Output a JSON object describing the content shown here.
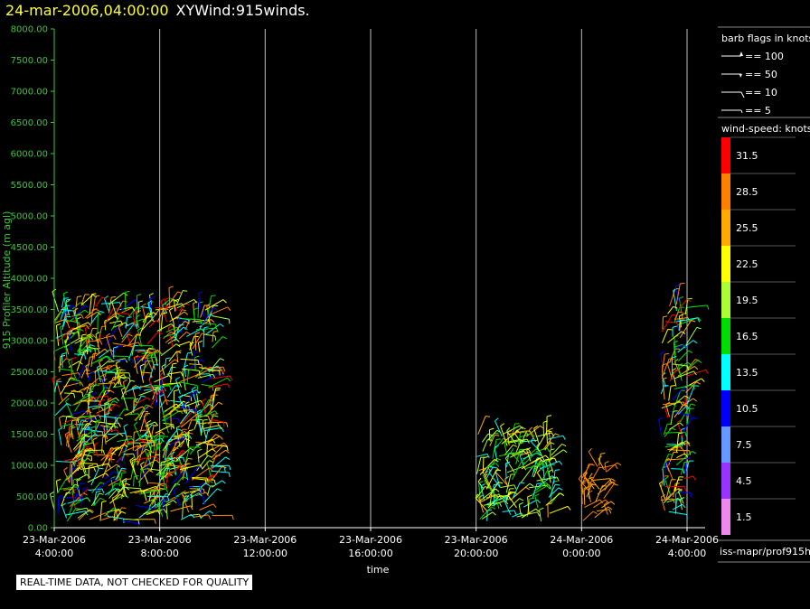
{
  "header": {
    "date_label": "24-mar-2006,04:00:00",
    "plot_label": "XYWind:915winds."
  },
  "footer": {
    "quality_note": "REAL-TIME DATA, NOT CHECKED FOR QUALITY",
    "source": "iss-mapr/prof915h"
  },
  "colors": {
    "background": "#000000",
    "axis": "#33cc33",
    "gridline": "#bbbbbb",
    "text": "#ffffff",
    "date_title": "#ffff33"
  },
  "chart_data": {
    "type": "scatter",
    "title": "XYWind:915winds.",
    "xlabel": "time",
    "ylabel": "915 Profiler Altitude (m agl)",
    "ylim": [
      0,
      8000
    ],
    "y_ticks": [
      "8000.00",
      "7500.00",
      "7000.00",
      "6500.00",
      "6000.00",
      "5500.00",
      "5000.00",
      "4500.00",
      "4000.00",
      "3500.00",
      "3000.00",
      "2500.00",
      "2000.00",
      "1500.00",
      "1000.00",
      "500.00",
      "0.00"
    ],
    "x_range": [
      "2006-03-23T04:00",
      "2006-03-24T04:00"
    ],
    "x_ticks": [
      {
        "time": "2006-03-23T04:00",
        "date": "23-Mar-2006",
        "clock": "4:00:00"
      },
      {
        "time": "2006-03-23T08:00",
        "date": "23-Mar-2006",
        "clock": "8:00:00"
      },
      {
        "time": "2006-03-23T12:00",
        "date": "23-Mar-2006",
        "clock": "12:00:00"
      },
      {
        "time": "2006-03-23T16:00",
        "date": "23-Mar-2006",
        "clock": "16:00:00"
      },
      {
        "time": "2006-03-23T20:00",
        "date": "23-Mar-2006",
        "clock": "20:00:00"
      },
      {
        "time": "2006-03-24T00:00",
        "date": "24-Mar-2006",
        "clock": "0:00:00"
      },
      {
        "time": "2006-03-24T04:00",
        "date": "24-Mar-2006",
        "clock": "4:00:00"
      }
    ],
    "grid": "vertical",
    "barb_legend": {
      "title": "barb flags in knots",
      "entries": [
        "== 100",
        "== 50",
        "== 10",
        "== 5"
      ]
    },
    "speed_scale": {
      "title": "wind-speed: knots",
      "bins": [
        {
          "label": "31.5",
          "color": "#ff0000"
        },
        {
          "label": "28.5",
          "color": "#ff8000"
        },
        {
          "label": "25.5",
          "color": "#ffaa00"
        },
        {
          "label": "22.5",
          "color": "#ffff00"
        },
        {
          "label": "19.5",
          "color": "#aaff33"
        },
        {
          "label": "16.5",
          "color": "#00dd00"
        },
        {
          "label": "13.5",
          "color": "#00ffff"
        },
        {
          "label": "10.5",
          "color": "#0000ff"
        },
        {
          "label": "7.5",
          "color": "#6699ff"
        },
        {
          "label": "4.5",
          "color": "#9933ff"
        },
        {
          "label": "1.5",
          "color": "#ee88ee"
        }
      ]
    },
    "observation_periods": [
      {
        "start": "2006-03-23T04:00",
        "end": "2006-03-23T10:00",
        "alt_min": 100,
        "alt_max": 3600,
        "speed_knots": [
          10.5,
          31.5
        ]
      },
      {
        "start": "2006-03-23T20:00",
        "end": "2006-03-23T23:00",
        "alt_min": 100,
        "alt_max": 1500,
        "speed_knots": [
          13.5,
          25.5
        ]
      },
      {
        "start": "2006-03-24T00:00",
        "end": "2006-03-24T01:00",
        "alt_min": 100,
        "alt_max": 1000,
        "speed_knots": [
          25.5,
          28.5
        ]
      },
      {
        "start": "2006-03-24T03:00",
        "end": "2006-03-24T04:00",
        "alt_min": 200,
        "alt_max": 3600,
        "speed_knots": [
          10.5,
          31.5
        ]
      }
    ]
  }
}
